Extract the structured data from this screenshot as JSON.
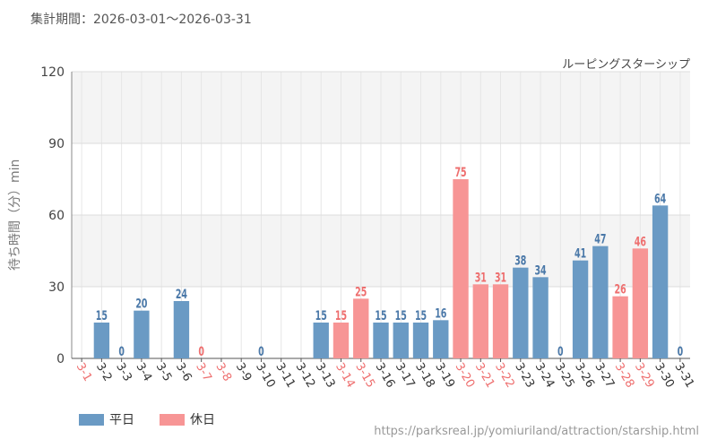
{
  "header": {
    "period": "集計期間：2026-03-01〜2026-03-31"
  },
  "attraction_label": "ルーピングスターシップ",
  "legend": {
    "weekday": "平日",
    "holiday": "休日"
  },
  "source": "https://parksreal.jp/yomiuriland/attraction/starship.html",
  "colors": {
    "weekday": "#6a9ac4",
    "holiday": "#f79595",
    "weekday_text": "#4a78a8",
    "holiday_text": "#ee6e6e"
  },
  "chart_data": {
    "type": "bar",
    "ylabel": "待ち時間（分）min",
    "ylim": [
      0,
      120
    ],
    "yticks": [
      0,
      30,
      60,
      90,
      120
    ],
    "grid": true,
    "legend_position": "bottom-left",
    "categories": [
      "3-1",
      "3-2",
      "3-3",
      "3-4",
      "3-5",
      "3-6",
      "3-7",
      "3-8",
      "3-9",
      "3-10",
      "3-11",
      "3-12",
      "3-13",
      "3-14",
      "3-15",
      "3-16",
      "3-17",
      "3-18",
      "3-19",
      "3-20",
      "3-21",
      "3-22",
      "3-23",
      "3-24",
      "3-25",
      "3-26",
      "3-27",
      "3-28",
      "3-29",
      "3-30",
      "3-31"
    ],
    "day_type": [
      "holiday",
      "weekday",
      "weekday",
      "weekday",
      "weekday",
      "weekday",
      "holiday",
      "holiday",
      "weekday",
      "weekday",
      "weekday",
      "weekday",
      "weekday",
      "holiday",
      "holiday",
      "weekday",
      "weekday",
      "weekday",
      "weekday",
      "holiday",
      "holiday",
      "holiday",
      "weekday",
      "weekday",
      "weekday",
      "weekday",
      "weekday",
      "holiday",
      "holiday",
      "weekday",
      "weekday"
    ],
    "values": [
      null,
      15,
      0,
      20,
      null,
      24,
      0,
      null,
      null,
      0,
      null,
      null,
      15,
      15,
      25,
      15,
      15,
      15,
      16,
      75,
      31,
      31,
      38,
      34,
      0,
      41,
      47,
      26,
      46,
      64,
      0
    ]
  }
}
